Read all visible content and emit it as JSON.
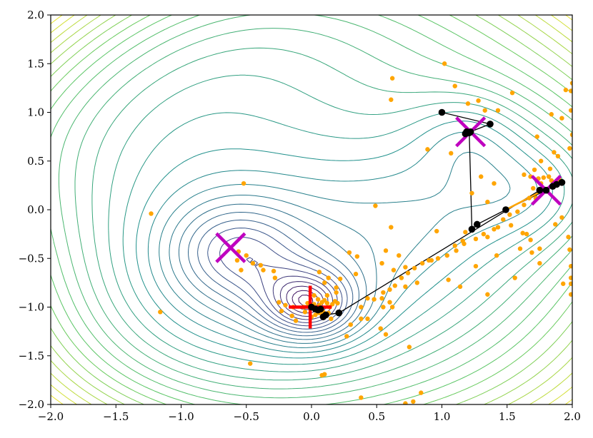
{
  "chart_data": {
    "type": "scatter",
    "title": "",
    "xlabel": "",
    "ylabel": "",
    "xlim": [
      -2.0,
      2.0
    ],
    "ylim": [
      -2.0,
      2.0
    ],
    "grid": false,
    "legend": "none",
    "x_ticks": [
      "−2.0",
      "−1.5",
      "−1.0",
      "−0.5",
      "0.0",
      "0.5",
      "1.0",
      "1.5",
      "2.0"
    ],
    "y_ticks": [
      "−2.0",
      "−1.5",
      "−1.0",
      "−0.5",
      "0.0",
      "0.5",
      "1.0",
      "1.5",
      "2.0"
    ],
    "contour_colormap": "viridis",
    "markers": {
      "minima_x_marks": [
        {
          "x": -0.62,
          "y": -0.39
        },
        {
          "x": 1.22,
          "y": 0.8
        },
        {
          "x": 1.8,
          "y": 0.2
        }
      ],
      "global_min_plus": {
        "x": -0.01,
        "y": -1.0
      }
    },
    "colors": {
      "samples": "#FFA500",
      "path": "#000000",
      "minima": "#BF00BF",
      "global_min": "#FF0000",
      "orange_segment": "#FFA500"
    },
    "paths": [
      {
        "points": [
          [
            1.0,
            1.0
          ],
          [
            1.37,
            0.88
          ],
          [
            1.18,
            0.78
          ],
          [
            1.22,
            0.8
          ],
          [
            1.21,
            0.79
          ],
          [
            1.19,
            0.8
          ]
        ]
      },
      {
        "points": [
          [
            1.19,
            0.8
          ],
          [
            1.21,
            0.79
          ],
          [
            1.23,
            -0.2
          ],
          [
            1.27,
            -0.15
          ],
          [
            1.49,
            0.0
          ],
          [
            1.8,
            0.2
          ],
          [
            1.85,
            0.24
          ],
          [
            1.88,
            0.26
          ],
          [
            1.92,
            0.28
          ]
        ]
      },
      {
        "points": [
          [
            1.92,
            0.28
          ],
          [
            1.75,
            0.2
          ],
          [
            0.21,
            -1.06
          ],
          [
            0.11,
            -1.08
          ],
          [
            0.09,
            -1.1
          ],
          [
            0.07,
            -1.02
          ],
          [
            0.03,
            -1.02
          ],
          [
            0.0,
            -1.0
          ],
          [
            0.05,
            -1.03
          ]
        ]
      }
    ],
    "orange_segment": [
      [
        1.49,
        0.0
      ],
      [
        1.75,
        0.18
      ]
    ],
    "samples": [
      [
        -0.52,
        0.27
      ],
      [
        -1.23,
        -0.04
      ],
      [
        -1.16,
        -1.05
      ],
      [
        -0.39,
        -0.57
      ],
      [
        -0.45,
        -0.55
      ],
      [
        -0.5,
        -0.47
      ],
      [
        -0.56,
        -0.43
      ],
      [
        -0.57,
        -0.52
      ],
      [
        -0.54,
        -0.62
      ],
      [
        -0.29,
        -0.63
      ],
      [
        -0.23,
        -1.04
      ],
      [
        -0.15,
        -1.09
      ],
      [
        -0.12,
        -1.14
      ],
      [
        -0.25,
        -0.95
      ],
      [
        -0.2,
        -0.98
      ],
      [
        -0.06,
        -1.0
      ],
      [
        -0.03,
        -0.96
      ],
      [
        0.02,
        -0.97
      ],
      [
        0.04,
        -1.02
      ],
      [
        0.06,
        -0.98
      ],
      [
        0.08,
        -0.95
      ],
      [
        0.1,
        -0.93
      ],
      [
        0.12,
        -0.96
      ],
      [
        0.14,
        -1.0
      ],
      [
        0.16,
        -0.97
      ],
      [
        0.18,
        -0.94
      ],
      [
        0.2,
        -0.96
      ],
      [
        0.09,
        -1.05
      ],
      [
        0.13,
        -1.06
      ],
      [
        0.06,
        -1.06
      ],
      [
        0.03,
        -1.08
      ],
      [
        0.02,
        -0.88
      ],
      [
        0.12,
        -0.88
      ],
      [
        0.15,
        -1.12
      ],
      [
        0.3,
        -1.18
      ],
      [
        0.27,
        -1.3
      ],
      [
        0.38,
        -1.12
      ],
      [
        0.43,
        -1.12
      ],
      [
        0.53,
        -1.22
      ],
      [
        0.57,
        -1.28
      ],
      [
        0.38,
        -1.0
      ],
      [
        0.48,
        -0.92
      ],
      [
        0.54,
        -0.91
      ],
      [
        0.6,
        -0.82
      ],
      [
        0.64,
        -0.78
      ],
      [
        0.69,
        -0.7
      ],
      [
        0.74,
        -0.65
      ],
      [
        0.79,
        -0.6
      ],
      [
        0.85,
        -0.55
      ],
      [
        0.92,
        -0.52
      ],
      [
        0.97,
        -0.5
      ],
      [
        1.04,
        -0.47
      ],
      [
        1.11,
        -0.42
      ],
      [
        1.17,
        -0.35
      ],
      [
        1.1,
        -0.37
      ],
      [
        1.26,
        -0.3
      ],
      [
        1.32,
        -0.25
      ],
      [
        1.35,
        -0.28
      ],
      [
        1.4,
        -0.2
      ],
      [
        1.43,
        -0.18
      ],
      [
        1.47,
        -0.1
      ],
      [
        1.52,
        -0.05
      ],
      [
        1.58,
        -0.02
      ],
      [
        1.63,
        0.05
      ],
      [
        1.67,
        0.12
      ],
      [
        1.72,
        0.12
      ],
      [
        1.7,
        0.22
      ],
      [
        1.76,
        0.27
      ],
      [
        1.78,
        0.33
      ],
      [
        1.82,
        0.34
      ],
      [
        1.84,
        0.3
      ],
      [
        1.88,
        0.27
      ],
      [
        1.9,
        0.31
      ],
      [
        1.74,
        0.32
      ],
      [
        1.68,
        0.34
      ],
      [
        1.63,
        0.36
      ],
      [
        1.71,
        0.41
      ],
      [
        1.83,
        0.42
      ],
      [
        1.76,
        0.5
      ],
      [
        1.86,
        0.59
      ],
      [
        1.73,
        0.75
      ],
      [
        1.89,
        0.55
      ],
      [
        1.98,
        0.63
      ],
      [
        2.0,
        0.77
      ],
      [
        1.99,
        1.22
      ],
      [
        1.95,
        1.23
      ],
      [
        2.0,
        1.3
      ],
      [
        1.99,
        1.02
      ],
      [
        1.92,
        0.94
      ],
      [
        1.84,
        0.98
      ],
      [
        1.54,
        1.2
      ],
      [
        1.43,
        1.02
      ],
      [
        1.33,
        1.02
      ],
      [
        1.28,
        1.12
      ],
      [
        1.2,
        1.09
      ],
      [
        1.1,
        1.27
      ],
      [
        1.02,
        1.5
      ],
      [
        0.62,
        1.35
      ],
      [
        0.61,
        1.13
      ],
      [
        0.89,
        0.62
      ],
      [
        1.07,
        0.58
      ],
      [
        1.3,
        0.34
      ],
      [
        1.4,
        0.27
      ],
      [
        1.23,
        0.17
      ],
      [
        1.35,
        0.08
      ],
      [
        0.61,
        -0.18
      ],
      [
        0.49,
        0.04
      ],
      [
        0.96,
        -0.22
      ],
      [
        1.18,
        -0.23
      ],
      [
        1.16,
        -0.32
      ],
      [
        0.57,
        -0.42
      ],
      [
        0.67,
        -0.47
      ],
      [
        0.9,
        -0.52
      ],
      [
        0.72,
        -0.59
      ],
      [
        0.63,
        -0.62
      ],
      [
        0.54,
        -0.55
      ],
      [
        0.35,
        -0.48
      ],
      [
        0.29,
        -0.44
      ],
      [
        0.34,
        -0.66
      ],
      [
        0.19,
        -0.85
      ],
      [
        0.22,
        -0.71
      ],
      [
        0.13,
        -0.7
      ],
      [
        0.06,
        -0.64
      ],
      [
        0.19,
        -0.8
      ],
      [
        0.1,
        -0.75
      ],
      [
        0.43,
        -0.91
      ],
      [
        0.55,
        -0.85
      ],
      [
        0.72,
        -0.79
      ],
      [
        0.81,
        -0.75
      ],
      [
        1.05,
        -0.72
      ],
      [
        1.14,
        -0.79
      ],
      [
        1.6,
        -0.4
      ],
      [
        1.65,
        -0.25
      ],
      [
        1.53,
        -0.16
      ],
      [
        1.68,
        -0.31
      ],
      [
        1.69,
        -0.44
      ],
      [
        1.75,
        -0.4
      ],
      [
        1.87,
        -0.15
      ],
      [
        1.92,
        -0.08
      ],
      [
        1.97,
        -0.28
      ],
      [
        1.98,
        -0.41
      ],
      [
        1.99,
        -0.58
      ],
      [
        1.99,
        -0.7
      ],
      [
        1.99,
        -0.76
      ],
      [
        1.99,
        -0.87
      ],
      [
        1.93,
        -0.76
      ],
      [
        1.75,
        -0.55
      ],
      [
        1.56,
        -0.7
      ],
      [
        1.42,
        -0.47
      ],
      [
        1.26,
        -0.58
      ],
      [
        1.35,
        -0.87
      ],
      [
        0.75,
        -1.41
      ],
      [
        0.55,
        -1.0
      ],
      [
        0.62,
        -1.0
      ],
      [
        0.6,
        -0.95
      ],
      [
        -0.47,
        -1.58
      ],
      [
        0.08,
        -1.7
      ],
      [
        0.1,
        -1.69
      ],
      [
        0.38,
        -1.93
      ],
      [
        0.72,
        -1.99
      ],
      [
        0.78,
        -1.97
      ],
      [
        0.84,
        -1.88
      ],
      [
        1.62,
        -0.24
      ],
      [
        -0.28,
        -0.7
      ],
      [
        -0.37,
        -0.62
      ],
      [
        -0.14,
        -1.0
      ],
      [
        -0.05,
        -1.05
      ],
      [
        0.0,
        -1.1
      ],
      [
        0.07,
        -1.04
      ],
      [
        0.05,
        -0.92
      ]
    ]
  }
}
